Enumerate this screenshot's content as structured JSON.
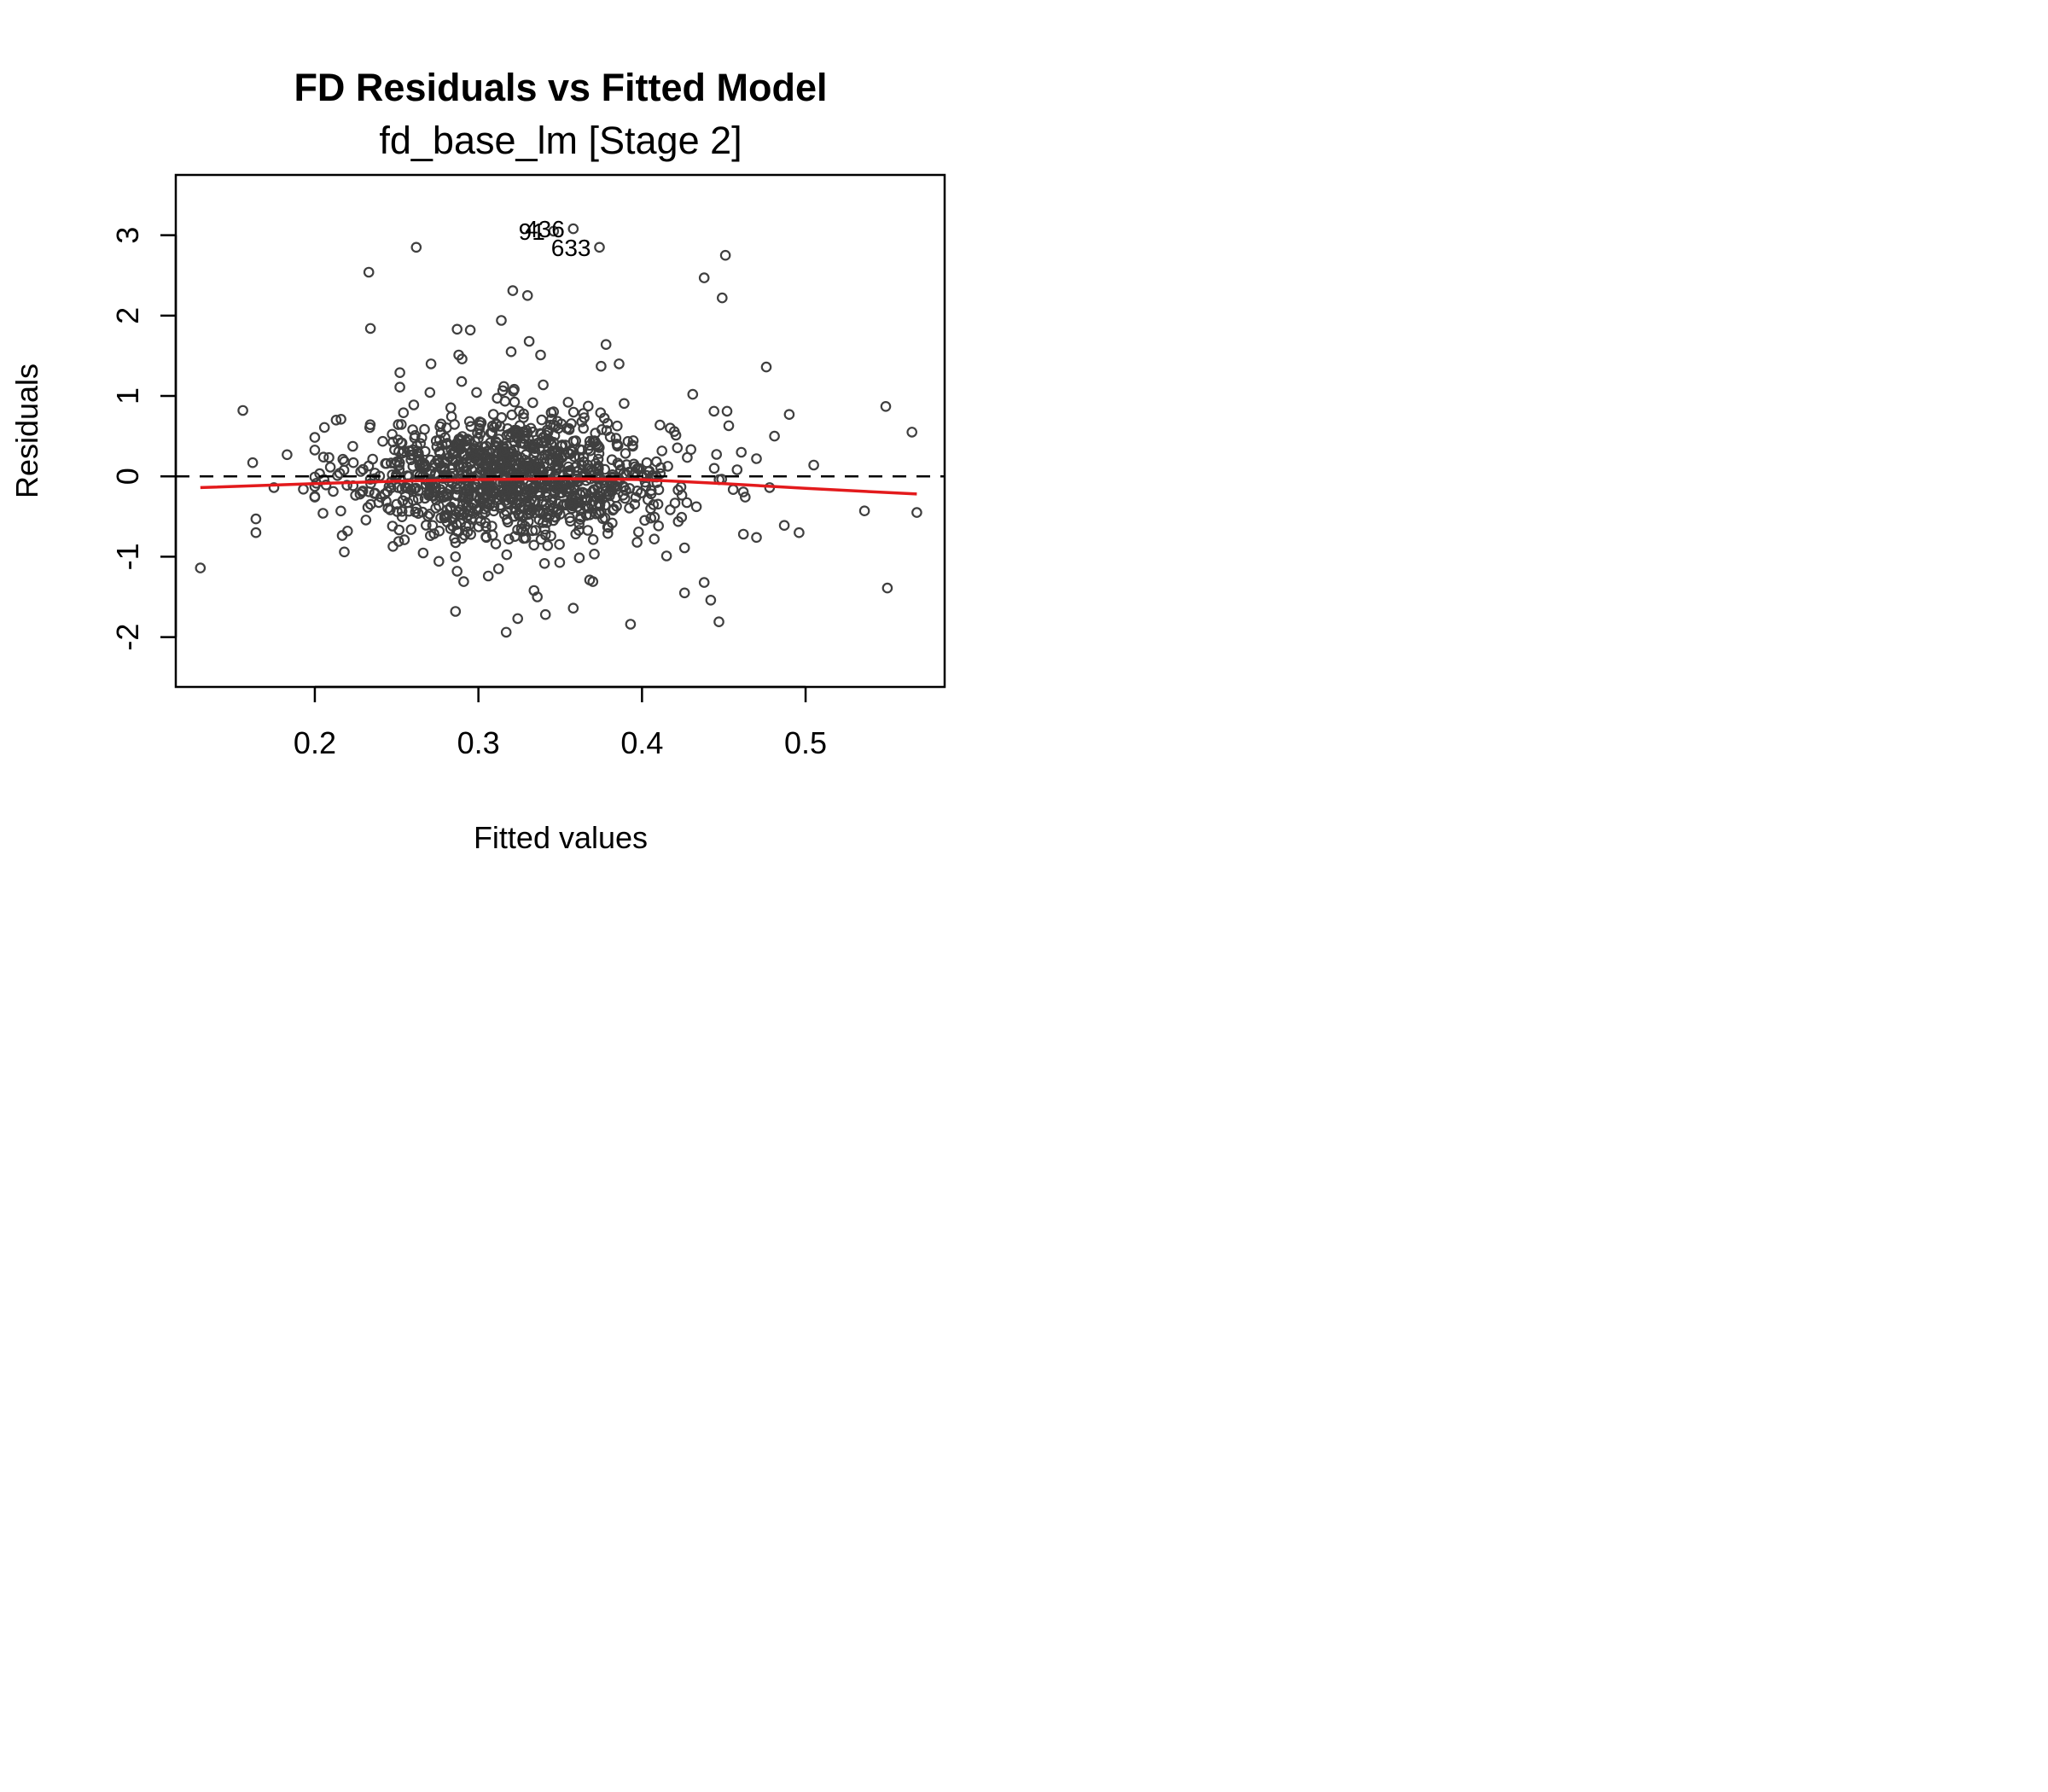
{
  "chart_data": {
    "type": "scatter",
    "title": "FD Residuals vs Fitted Model",
    "subtitle": "fd_base_lm [Stage 2]",
    "xlabel": "Fitted values",
    "ylabel": "Residuals",
    "xlim": [
      0.115,
      0.585
    ],
    "ylim": [
      -2.62,
      3.75
    ],
    "xticks": [
      0.2,
      0.3,
      0.4,
      0.5
    ],
    "yticks": [
      -2,
      -1,
      0,
      1,
      2,
      3
    ],
    "xtick_labels": [
      "0.2",
      "0.3",
      "0.4",
      "0.5"
    ],
    "ytick_labels": [
      "-2",
      "-1",
      "0",
      "1",
      "2",
      "3"
    ],
    "point_color": "#3f3f3f",
    "smooth_color": "#e31a1c",
    "reference_line": {
      "y": 0,
      "style": "dashed",
      "color": "#000000"
    },
    "smooth_line": {
      "x": [
        0.13,
        0.2,
        0.25,
        0.3,
        0.35,
        0.4,
        0.45,
        0.5,
        0.568
      ],
      "y": [
        -0.14,
        -0.09,
        -0.06,
        -0.04,
        -0.03,
        -0.04,
        -0.09,
        -0.15,
        -0.22
      ]
    },
    "labeled_points": [
      {
        "label": "436",
        "x": 0.358,
        "y": 3.08
      },
      {
        "label": "91",
        "x": 0.346,
        "y": 3.05
      },
      {
        "label": "633",
        "x": 0.374,
        "y": 2.85
      }
    ],
    "outlier_points": [
      {
        "x": 0.13,
        "y": -1.14
      },
      {
        "x": 0.156,
        "y": 0.82
      },
      {
        "x": 0.162,
        "y": 0.17
      },
      {
        "x": 0.164,
        "y": -0.53
      },
      {
        "x": 0.164,
        "y": -0.7
      },
      {
        "x": 0.175,
        "y": -0.14
      },
      {
        "x": 0.183,
        "y": 0.27
      },
      {
        "x": 0.193,
        "y": -0.16
      },
      {
        "x": 0.2,
        "y": -0.25
      },
      {
        "x": 0.205,
        "y": -0.46
      },
      {
        "x": 0.213,
        "y": 0.7
      },
      {
        "x": 0.216,
        "y": 0.71
      },
      {
        "x": 0.218,
        "y": -0.94
      },
      {
        "x": 0.22,
        "y": -0.68
      },
      {
        "x": 0.233,
        "y": 2.54
      },
      {
        "x": 0.234,
        "y": 1.84
      },
      {
        "x": 0.262,
        "y": 2.85
      },
      {
        "x": 0.252,
        "y": 1.29
      },
      {
        "x": 0.252,
        "y": 1.11
      },
      {
        "x": 0.271,
        "y": 1.4
      },
      {
        "x": 0.287,
        "y": 1.83
      },
      {
        "x": 0.288,
        "y": 1.51
      },
      {
        "x": 0.29,
        "y": 1.46
      },
      {
        "x": 0.295,
        "y": 1.82
      },
      {
        "x": 0.314,
        "y": 1.94
      },
      {
        "x": 0.321,
        "y": 2.31
      },
      {
        "x": 0.33,
        "y": 2.25
      },
      {
        "x": 0.331,
        "y": 1.68
      },
      {
        "x": 0.32,
        "y": 1.55
      },
      {
        "x": 0.338,
        "y": 1.51
      },
      {
        "x": 0.286,
        "y": -1.0
      },
      {
        "x": 0.287,
        "y": -1.18
      },
      {
        "x": 0.291,
        "y": -1.31
      },
      {
        "x": 0.286,
        "y": -1.68
      },
      {
        "x": 0.306,
        "y": -1.24
      },
      {
        "x": 0.317,
        "y": -1.94
      },
      {
        "x": 0.324,
        "y": -1.77
      },
      {
        "x": 0.334,
        "y": -1.42
      },
      {
        "x": 0.336,
        "y": -1.5
      },
      {
        "x": 0.341,
        "y": -1.72
      },
      {
        "x": 0.358,
        "y": -1.64
      },
      {
        "x": 0.368,
        "y": -1.29
      },
      {
        "x": 0.37,
        "y": -1.31
      },
      {
        "x": 0.393,
        "y": -1.84
      },
      {
        "x": 0.426,
        "y": -1.45
      },
      {
        "x": 0.438,
        "y": -1.32
      },
      {
        "x": 0.442,
        "y": -1.54
      },
      {
        "x": 0.447,
        "y": -1.81
      },
      {
        "x": 0.378,
        "y": 1.64
      },
      {
        "x": 0.386,
        "y": 1.4
      },
      {
        "x": 0.375,
        "y": 1.37
      },
      {
        "x": 0.431,
        "y": 1.02
      },
      {
        "x": 0.438,
        "y": 2.47
      },
      {
        "x": 0.449,
        "y": 2.22
      },
      {
        "x": 0.451,
        "y": 2.75
      },
      {
        "x": 0.476,
        "y": 1.36
      },
      {
        "x": 0.49,
        "y": 0.77
      },
      {
        "x": 0.481,
        "y": 0.5
      },
      {
        "x": 0.487,
        "y": -0.61
      },
      {
        "x": 0.496,
        "y": -0.7
      },
      {
        "x": 0.505,
        "y": 0.14
      },
      {
        "x": 0.536,
        "y": -0.43
      },
      {
        "x": 0.549,
        "y": 0.87
      },
      {
        "x": 0.55,
        "y": -1.39
      },
      {
        "x": 0.565,
        "y": 0.55
      },
      {
        "x": 0.568,
        "y": -0.45
      },
      {
        "x": 0.462,
        "y": -0.72
      },
      {
        "x": 0.47,
        "y": -0.76
      },
      {
        "x": 0.478,
        "y": -0.14
      },
      {
        "x": 0.453,
        "y": 0.63
      },
      {
        "x": 0.452,
        "y": 0.81
      },
      {
        "x": 0.444,
        "y": 0.81
      },
      {
        "x": 0.426,
        "y": -0.89
      },
      {
        "x": 0.415,
        "y": -0.99
      },
      {
        "x": 0.397,
        "y": -0.82
      }
    ],
    "cloud": {
      "n": 1100,
      "center_x": 0.322,
      "sd_x": 0.048,
      "sd_y": 0.42
    }
  }
}
